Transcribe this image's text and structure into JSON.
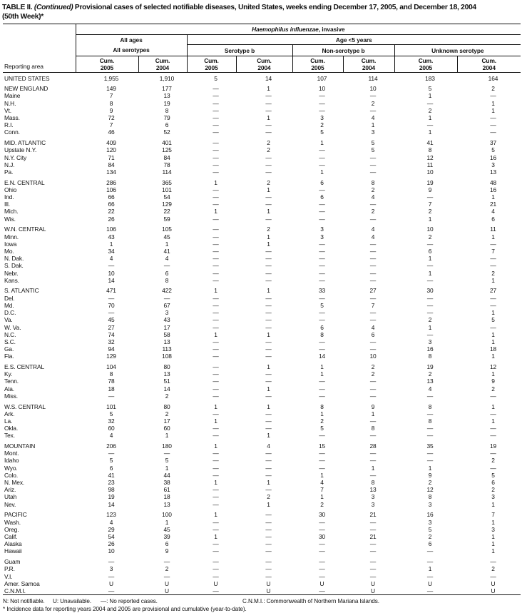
{
  "title": {
    "prefix": "TABLE II.",
    "continued": "(Continued)",
    "main": "Provisional cases of selected notifiable diseases, United States, weeks ending December 17, 2005, and December 18, 2004",
    "line2": "(50th Week)*"
  },
  "table": {
    "disease_italic": "Haemophilus influenzae",
    "disease_rest": ", invasive",
    "reporting_area": "Reporting area",
    "all_ages": "All ages",
    "age_lt5": "Age <5 years",
    "all_serotypes": "All serotypes",
    "serotype_b": "Serotype b",
    "non_serotype_b": "Non-serotype b",
    "unknown_serotype": "Unknown serotype",
    "cum_label": "Cum.",
    "column_years": [
      "2005",
      "2004",
      "2005",
      "2004",
      "2005",
      "2004",
      "2005",
      "2004"
    ],
    "groups": [
      {
        "rows": [
          {
            "area": "UNITED STATES",
            "values": [
              "1,955",
              "1,910",
              "5",
              "14",
              "107",
              "114",
              "183",
              "164"
            ]
          }
        ]
      },
      {
        "rows": [
          {
            "area": "NEW ENGLAND",
            "values": [
              "149",
              "177",
              "—",
              "1",
              "10",
              "10",
              "5",
              "2"
            ]
          },
          {
            "area": "Maine",
            "values": [
              "7",
              "13",
              "—",
              "—",
              "—",
              "—",
              "1",
              "—"
            ]
          },
          {
            "area": "N.H.",
            "values": [
              "8",
              "19",
              "—",
              "—",
              "—",
              "2",
              "—",
              "1"
            ]
          },
          {
            "area": "Vt.",
            "values": [
              "9",
              "8",
              "—",
              "—",
              "—",
              "—",
              "2",
              "1"
            ]
          },
          {
            "area": "Mass.",
            "values": [
              "72",
              "79",
              "—",
              "1",
              "3",
              "4",
              "1",
              "—"
            ]
          },
          {
            "area": "R.I.",
            "values": [
              "7",
              "6",
              "—",
              "—",
              "2",
              "1",
              "—",
              "—"
            ]
          },
          {
            "area": "Conn.",
            "values": [
              "46",
              "52",
              "—",
              "—",
              "5",
              "3",
              "1",
              "—"
            ]
          }
        ]
      },
      {
        "rows": [
          {
            "area": "MID. ATLANTIC",
            "values": [
              "409",
              "401",
              "—",
              "2",
              "1",
              "5",
              "41",
              "37"
            ]
          },
          {
            "area": "Upstate N.Y.",
            "values": [
              "120",
              "125",
              "—",
              "2",
              "—",
              "5",
              "8",
              "5"
            ]
          },
          {
            "area": "N.Y. City",
            "values": [
              "71",
              "84",
              "—",
              "—",
              "—",
              "—",
              "12",
              "16"
            ]
          },
          {
            "area": "N.J.",
            "values": [
              "84",
              "78",
              "—",
              "—",
              "—",
              "—",
              "11",
              "3"
            ]
          },
          {
            "area": "Pa.",
            "values": [
              "134",
              "114",
              "—",
              "—",
              "1",
              "—",
              "10",
              "13"
            ]
          }
        ]
      },
      {
        "rows": [
          {
            "area": "E.N. CENTRAL",
            "values": [
              "286",
              "365",
              "1",
              "2",
              "6",
              "8",
              "19",
              "48"
            ]
          },
          {
            "area": "Ohio",
            "values": [
              "106",
              "101",
              "—",
              "1",
              "—",
              "2",
              "9",
              "16"
            ]
          },
          {
            "area": "Ind.",
            "values": [
              "66",
              "54",
              "—",
              "—",
              "6",
              "4",
              "—",
              "1"
            ]
          },
          {
            "area": "Ill.",
            "values": [
              "66",
              "129",
              "—",
              "—",
              "—",
              "—",
              "7",
              "21"
            ]
          },
          {
            "area": "Mich.",
            "values": [
              "22",
              "22",
              "1",
              "1",
              "—",
              "2",
              "2",
              "4"
            ]
          },
          {
            "area": "Wis.",
            "values": [
              "26",
              "59",
              "—",
              "—",
              "—",
              "—",
              "1",
              "6"
            ]
          }
        ]
      },
      {
        "rows": [
          {
            "area": "W.N. CENTRAL",
            "values": [
              "106",
              "105",
              "—",
              "2",
              "3",
              "4",
              "10",
              "11"
            ]
          },
          {
            "area": "Minn.",
            "values": [
              "43",
              "45",
              "—",
              "1",
              "3",
              "4",
              "2",
              "1"
            ]
          },
          {
            "area": "Iowa",
            "values": [
              "1",
              "1",
              "—",
              "1",
              "—",
              "—",
              "—",
              "—"
            ]
          },
          {
            "area": "Mo.",
            "values": [
              "34",
              "41",
              "—",
              "—",
              "—",
              "—",
              "6",
              "7"
            ]
          },
          {
            "area": "N. Dak.",
            "values": [
              "4",
              "4",
              "—",
              "—",
              "—",
              "—",
              "1",
              "—"
            ]
          },
          {
            "area": "S. Dak.",
            "values": [
              "—",
              "—",
              "—",
              "—",
              "—",
              "—",
              "—",
              "—"
            ]
          },
          {
            "area": "Nebr.",
            "values": [
              "10",
              "6",
              "—",
              "—",
              "—",
              "—",
              "1",
              "2"
            ]
          },
          {
            "area": "Kans.",
            "values": [
              "14",
              "8",
              "—",
              "—",
              "—",
              "—",
              "—",
              "1"
            ]
          }
        ]
      },
      {
        "rows": [
          {
            "area": "S. ATLANTIC",
            "values": [
              "471",
              "422",
              "1",
              "1",
              "33",
              "27",
              "30",
              "27"
            ]
          },
          {
            "area": "Del.",
            "values": [
              "—",
              "—",
              "—",
              "—",
              "—",
              "—",
              "—",
              "—"
            ]
          },
          {
            "area": "Md.",
            "values": [
              "70",
              "67",
              "—",
              "—",
              "5",
              "7",
              "—",
              "—"
            ]
          },
          {
            "area": "D.C.",
            "values": [
              "—",
              "3",
              "—",
              "—",
              "—",
              "—",
              "—",
              "1"
            ]
          },
          {
            "area": "Va.",
            "values": [
              "45",
              "43",
              "—",
              "—",
              "—",
              "—",
              "2",
              "5"
            ]
          },
          {
            "area": "W. Va.",
            "values": [
              "27",
              "17",
              "—",
              "—",
              "6",
              "4",
              "1",
              "—"
            ]
          },
          {
            "area": "N.C.",
            "values": [
              "74",
              "58",
              "1",
              "1",
              "8",
              "6",
              "—",
              "1"
            ]
          },
          {
            "area": "S.C.",
            "values": [
              "32",
              "13",
              "—",
              "—",
              "—",
              "—",
              "3",
              "1"
            ]
          },
          {
            "area": "Ga.",
            "values": [
              "94",
              "113",
              "—",
              "—",
              "—",
              "—",
              "16",
              "18"
            ]
          },
          {
            "area": "Fla.",
            "values": [
              "129",
              "108",
              "—",
              "—",
              "14",
              "10",
              "8",
              "1"
            ]
          }
        ]
      },
      {
        "rows": [
          {
            "area": "E.S. CENTRAL",
            "values": [
              "104",
              "80",
              "—",
              "1",
              "1",
              "2",
              "19",
              "12"
            ]
          },
          {
            "area": "Ky.",
            "values": [
              "8",
              "13",
              "—",
              "—",
              "1",
              "2",
              "2",
              "1"
            ]
          },
          {
            "area": "Tenn.",
            "values": [
              "78",
              "51",
              "—",
              "—",
              "—",
              "—",
              "13",
              "9"
            ]
          },
          {
            "area": "Ala.",
            "values": [
              "18",
              "14",
              "—",
              "1",
              "—",
              "—",
              "4",
              "2"
            ]
          },
          {
            "area": "Miss.",
            "values": [
              "—",
              "2",
              "—",
              "—",
              "—",
              "—",
              "—",
              "—"
            ]
          }
        ]
      },
      {
        "rows": [
          {
            "area": "W.S. CENTRAL",
            "values": [
              "101",
              "80",
              "1",
              "1",
              "8",
              "9",
              "8",
              "1"
            ]
          },
          {
            "area": "Ark.",
            "values": [
              "5",
              "2",
              "—",
              "—",
              "1",
              "1",
              "—",
              "—"
            ]
          },
          {
            "area": "La.",
            "values": [
              "32",
              "17",
              "1",
              "—",
              "2",
              "—",
              "8",
              "1"
            ]
          },
          {
            "area": "Okla.",
            "values": [
              "60",
              "60",
              "—",
              "—",
              "5",
              "8",
              "—",
              "—"
            ]
          },
          {
            "area": "Tex.",
            "values": [
              "4",
              "1",
              "—",
              "1",
              "—",
              "—",
              "—",
              "—"
            ]
          }
        ]
      },
      {
        "rows": [
          {
            "area": "MOUNTAIN",
            "values": [
              "206",
              "180",
              "1",
              "4",
              "15",
              "28",
              "35",
              "19"
            ]
          },
          {
            "area": "Mont.",
            "values": [
              "—",
              "—",
              "—",
              "—",
              "—",
              "—",
              "—",
              "—"
            ]
          },
          {
            "area": "Idaho",
            "values": [
              "5",
              "5",
              "—",
              "—",
              "—",
              "—",
              "—",
              "2"
            ]
          },
          {
            "area": "Wyo.",
            "values": [
              "6",
              "1",
              "—",
              "—",
              "—",
              "1",
              "1",
              "—"
            ]
          },
          {
            "area": "Colo.",
            "values": [
              "41",
              "44",
              "—",
              "—",
              "1",
              "—",
              "9",
              "5"
            ]
          },
          {
            "area": "N. Mex.",
            "values": [
              "23",
              "38",
              "1",
              "1",
              "4",
              "8",
              "2",
              "6"
            ]
          },
          {
            "area": "Ariz.",
            "values": [
              "98",
              "61",
              "—",
              "—",
              "7",
              "13",
              "12",
              "2"
            ]
          },
          {
            "area": "Utah",
            "values": [
              "19",
              "18",
              "—",
              "2",
              "1",
              "3",
              "8",
              "3"
            ]
          },
          {
            "area": "Nev.",
            "values": [
              "14",
              "13",
              "—",
              "1",
              "2",
              "3",
              "3",
              "1"
            ]
          }
        ]
      },
      {
        "rows": [
          {
            "area": "PACIFIC",
            "values": [
              "123",
              "100",
              "1",
              "—",
              "30",
              "21",
              "16",
              "7"
            ]
          },
          {
            "area": "Wash.",
            "values": [
              "4",
              "1",
              "—",
              "—",
              "—",
              "—",
              "3",
              "1"
            ]
          },
          {
            "area": "Oreg.",
            "values": [
              "29",
              "45",
              "—",
              "—",
              "—",
              "—",
              "5",
              "3"
            ]
          },
          {
            "area": "Calif.",
            "values": [
              "54",
              "39",
              "1",
              "—",
              "30",
              "21",
              "2",
              "1"
            ]
          },
          {
            "area": "Alaska",
            "values": [
              "26",
              "6",
              "—",
              "—",
              "—",
              "—",
              "6",
              "1"
            ]
          },
          {
            "area": "Hawaii",
            "values": [
              "10",
              "9",
              "—",
              "—",
              "—",
              "—",
              "—",
              "1"
            ]
          }
        ]
      },
      {
        "rows": [
          {
            "area": "Guam",
            "values": [
              "—",
              "—",
              "—",
              "—",
              "—",
              "—",
              "—",
              "—"
            ]
          },
          {
            "area": "P.R.",
            "values": [
              "3",
              "2",
              "—",
              "—",
              "—",
              "—",
              "1",
              "2"
            ]
          },
          {
            "area": "V.I.",
            "values": [
              "—",
              "—",
              "—",
              "—",
              "—",
              "—",
              "—",
              "—"
            ]
          },
          {
            "area": "Amer. Samoa",
            "values": [
              "U",
              "U",
              "U",
              "U",
              "U",
              "U",
              "U",
              "U"
            ]
          },
          {
            "area": "C.N.M.I.",
            "values": [
              "—",
              "U",
              "—",
              "U",
              "—",
              "U",
              "—",
              "U"
            ]
          }
        ]
      }
    ]
  },
  "footnotes": {
    "legend": [
      "N: Not notifiable.",
      "U: Unavailable.",
      "—: No reported cases.",
      "C.N.M.I.: Commonwealth of Northern Mariana Islands."
    ],
    "incidence_note": "* Incidence data for reporting years 2004 and 2005 are provisional and cumulative (year-to-date)."
  }
}
